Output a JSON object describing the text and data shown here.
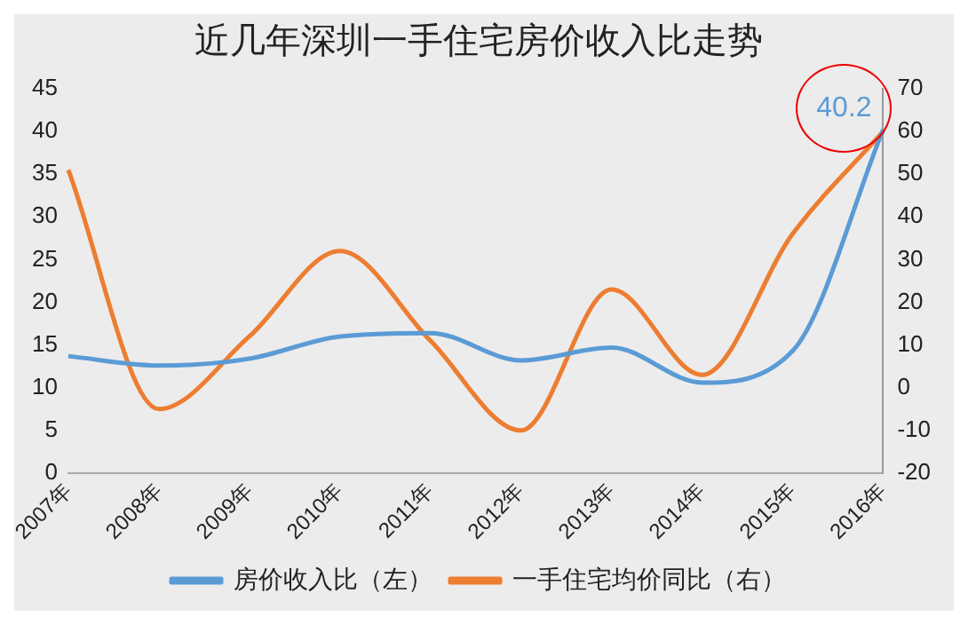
{
  "chart_data": {
    "type": "line",
    "title": "近几年深圳一手住宅房价收入比走势",
    "categories": [
      "2007年",
      "2008年",
      "2009年",
      "2010年",
      "2011年",
      "2012年",
      "2013年",
      "2014年",
      "2015年",
      "2016年"
    ],
    "series": [
      {
        "name": "房价收入比（左）",
        "color": "#5b9bd5",
        "values": [
          13.7,
          12.6,
          13.4,
          16,
          16.4,
          13.2,
          14.7,
          10.6,
          14.3,
          40.2
        ],
        "value_labels": [
          null,
          null,
          null,
          null,
          null,
          null,
          null,
          null,
          null,
          "40.2"
        ]
      },
      {
        "name": "一手住宅均价同比（右）",
        "color": "#ed7d31",
        "axis": "y2",
        "values": [
          51,
          -5,
          12,
          32,
          11,
          -10,
          23,
          3,
          36,
          60
        ]
      }
    ],
    "ylim": [
      0,
      45
    ],
    "yticks": [
      0,
      5,
      10,
      15,
      20,
      25,
      30,
      35,
      40,
      45
    ],
    "y2lim": [
      -20,
      70
    ],
    "y2ticks": [
      -20,
      -10,
      0,
      10,
      20,
      30,
      40,
      50,
      60,
      70
    ],
    "grid": false,
    "legend": "bottom",
    "marker": "none",
    "line_style": "solid"
  }
}
